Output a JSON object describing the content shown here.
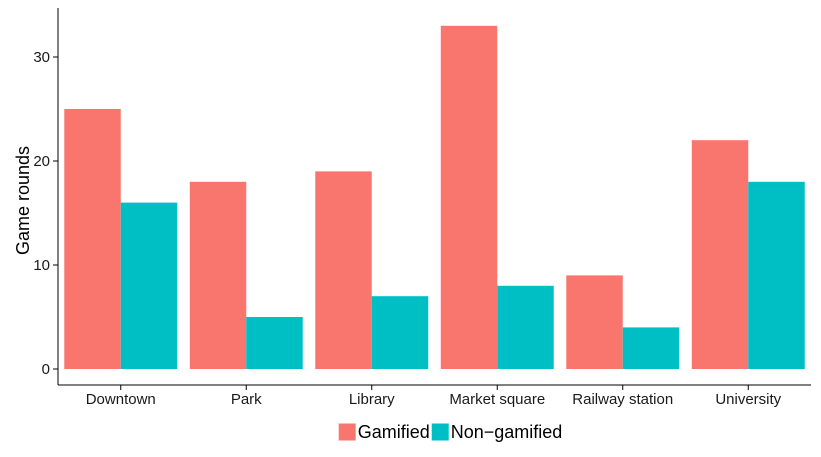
{
  "chart_data": {
    "type": "bar",
    "title": "",
    "xlabel": "",
    "ylabel": "Game rounds",
    "categories": [
      "Downtown",
      "Park",
      "Library",
      "Market square",
      "Railway station",
      "University"
    ],
    "series": [
      {
        "name": "Gamified",
        "color": "#F8766D",
        "values": [
          25,
          18,
          19,
          33,
          9,
          22
        ]
      },
      {
        "name": "Non−gamified",
        "color": "#00BFC4",
        "values": [
          16,
          5,
          7,
          8,
          4,
          18
        ]
      }
    ],
    "ylim": [
      0,
      34
    ],
    "yticks": [
      0,
      10,
      20,
      30
    ],
    "grid": false,
    "legend_position": "bottom"
  }
}
